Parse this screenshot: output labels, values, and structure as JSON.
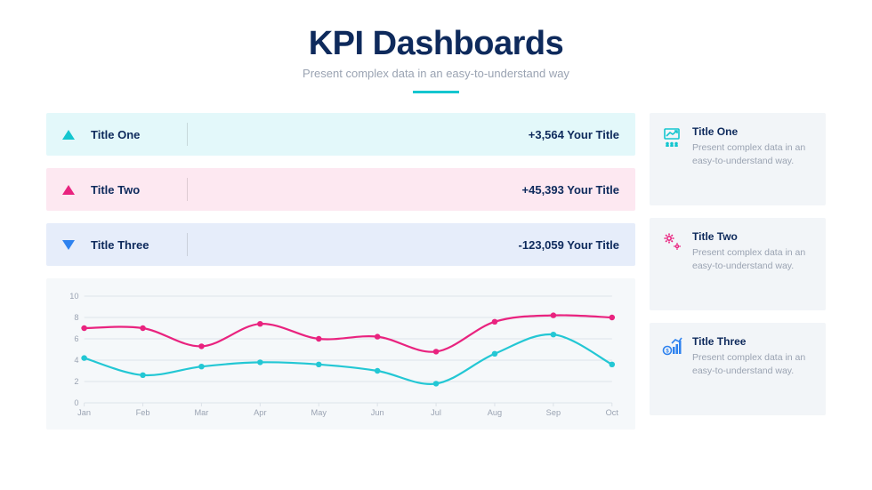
{
  "header": {
    "title": "KPI Dashboards",
    "subtitle": "Present complex data in an easy-to-understand way",
    "underline_color": "#14c6cf"
  },
  "kpi_rows": [
    {
      "label": "Title One",
      "value": "+3,564 Your Title",
      "direction": "up",
      "arrow_color": "#14c6cf",
      "bg_color": "#e3f8fa"
    },
    {
      "label": "Title Two",
      "value": "+45,393 Your Title",
      "direction": "up",
      "arrow_color": "#e9237f",
      "bg_color": "#fde8f1"
    },
    {
      "label": "Title Three",
      "value": "-123,059 Your Title",
      "direction": "down",
      "arrow_color": "#2e82ef",
      "bg_color": "#e6edfa"
    }
  ],
  "chart": {
    "type": "line",
    "background_color": "#f5f8fa",
    "categories": [
      "Jan",
      "Feb",
      "Mar",
      "Apr",
      "May",
      "Jun",
      "Jul",
      "Aug",
      "Sep",
      "Oct"
    ],
    "ylim": [
      0,
      10
    ],
    "yticks": [
      0,
      2,
      4,
      6,
      8,
      10
    ],
    "grid_color": "#dde3e9",
    "axis_fontsize": 9,
    "axis_color": "#9aa3b2",
    "series": [
      {
        "name": "series-a",
        "color": "#e9237f",
        "line_width": 2.2,
        "marker_radius": 3.2,
        "values": [
          7.0,
          7.0,
          5.3,
          7.4,
          6.0,
          6.2,
          4.8,
          7.6,
          8.2,
          8.0
        ]
      },
      {
        "name": "series-b",
        "color": "#23c7d4",
        "line_width": 2.2,
        "marker_radius": 3.2,
        "values": [
          4.2,
          2.6,
          3.4,
          3.8,
          3.6,
          3.0,
          1.8,
          4.6,
          6.4,
          3.6
        ]
      }
    ]
  },
  "side_cards": [
    {
      "title": "Title One",
      "desc": "Present complex data in an easy-to-understand way.",
      "icon": "chart-users-icon",
      "icon_color": "#14c6cf"
    },
    {
      "title": "Title Two",
      "desc": "Present complex data in an easy-to-understand way.",
      "icon": "gears-icon",
      "icon_color": "#e9237f"
    },
    {
      "title": "Title Three",
      "desc": "Present complex data in an easy-to-understand way.",
      "icon": "money-growth-icon",
      "icon_color": "#2e82ef"
    }
  ]
}
